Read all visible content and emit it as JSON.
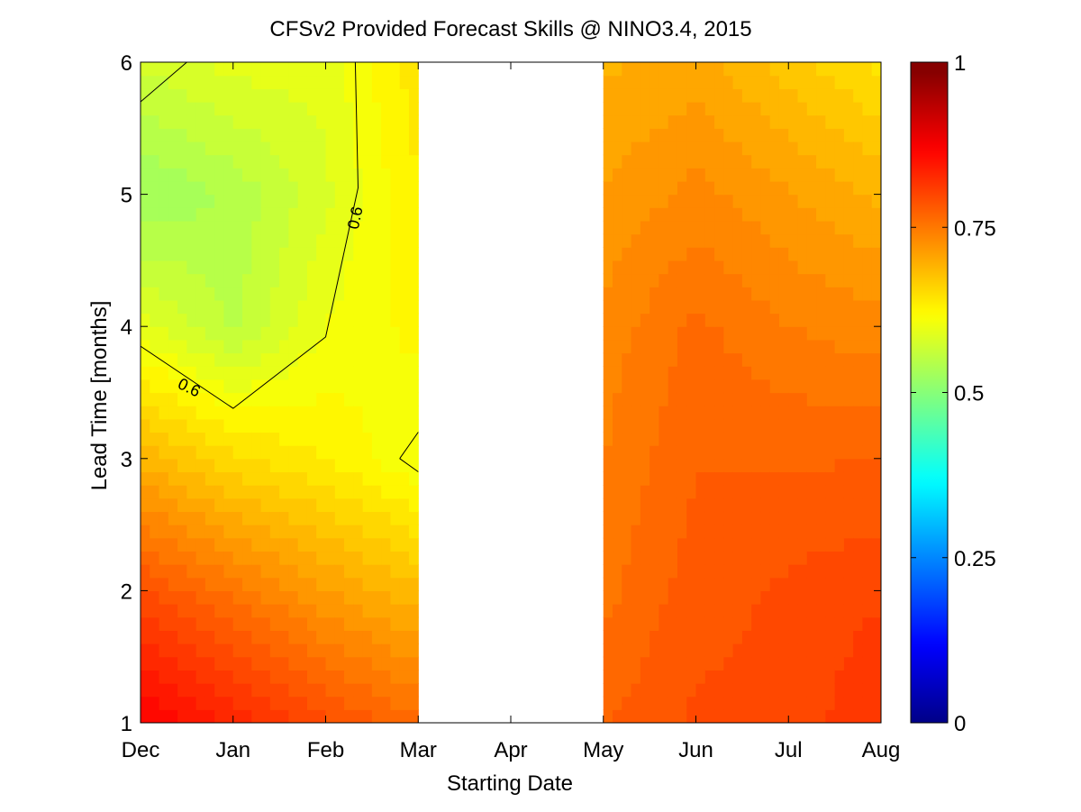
{
  "chart_data": {
    "type": "heatmap",
    "title": "CFSv2 Provided Forecast Skills @ NINO3.4, 2015",
    "xlabel": "Starting Date",
    "ylabel": "Lead Time [months]",
    "x_categories": [
      "Dec",
      "Jan",
      "Feb",
      "Mar",
      "Apr",
      "May",
      "Jun",
      "Jul",
      "Aug"
    ],
    "y_ticks": [
      "1",
      "2",
      "3",
      "4",
      "5",
      "6"
    ],
    "ylim": [
      1,
      6
    ],
    "color_limits": [
      0,
      1
    ],
    "colorbar_ticks": [
      "0",
      "0.25",
      "0.5",
      "0.75",
      "1"
    ],
    "colormap": "jet",
    "contour_level": 0.6,
    "contour_labels": [
      "0.6",
      "0.6"
    ],
    "missing_columns": [
      "Apr"
    ],
    "lead_times": [
      1,
      2,
      3,
      4,
      5,
      6
    ],
    "skill": [
      {
        "start": "Dec",
        "values": [
          0.88,
          0.8,
          0.7,
          0.6,
          0.53,
          0.58
        ]
      },
      {
        "start": "Jan",
        "values": [
          0.84,
          0.76,
          0.66,
          0.56,
          0.55,
          0.6
        ]
      },
      {
        "start": "Feb",
        "values": [
          0.8,
          0.72,
          0.64,
          0.61,
          0.59,
          0.6
        ]
      },
      {
        "start": "Mar",
        "values": [
          0.77,
          0.69,
          0.61,
          0.63,
          0.64,
          0.65
        ]
      },
      {
        "start": "Apr",
        "values": [
          null,
          null,
          null,
          null,
          null,
          null
        ]
      },
      {
        "start": "May",
        "values": [
          0.78,
          0.76,
          0.75,
          0.74,
          0.72,
          0.7
        ]
      },
      {
        "start": "Jun",
        "values": [
          0.8,
          0.79,
          0.78,
          0.77,
          0.74,
          0.71
        ]
      },
      {
        "start": "Jul",
        "values": [
          0.8,
          0.8,
          0.78,
          0.75,
          0.72,
          0.68
        ]
      },
      {
        "start": "Aug",
        "values": [
          0.83,
          0.81,
          0.78,
          0.74,
          0.7,
          0.65
        ]
      }
    ]
  }
}
